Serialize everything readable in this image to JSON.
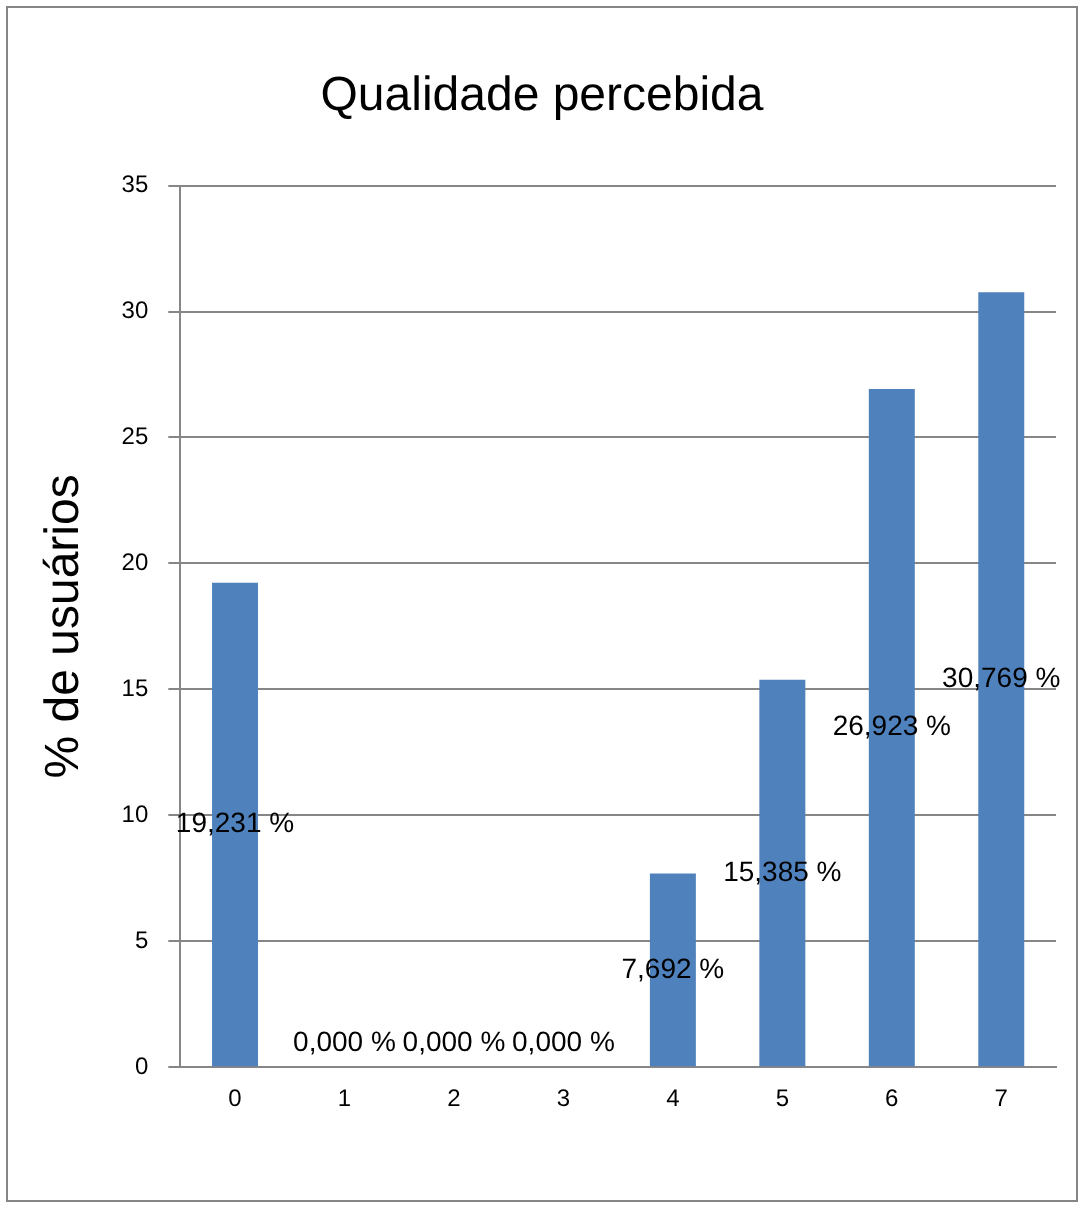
{
  "chart_data": {
    "type": "bar",
    "title": "Qualidade percebida",
    "ylabel": "% de usuários",
    "categories": [
      "0",
      "1",
      "2",
      "3",
      "4",
      "5",
      "6",
      "7"
    ],
    "values": [
      19.231,
      0,
      0,
      0,
      7.692,
      15.385,
      26.923,
      30.769
    ],
    "value_labels": [
      "19,231 %",
      "0,000 %",
      "0,000 %",
      "0,000 %",
      "7,692 %",
      "15,385 %",
      "26,923 %",
      "30,769 %"
    ],
    "color": "#4f81bd",
    "ylim": [
      0,
      35
    ],
    "yticks": [
      0,
      5,
      10,
      15,
      20,
      25,
      30,
      35
    ],
    "grid": "y",
    "legend": false
  }
}
